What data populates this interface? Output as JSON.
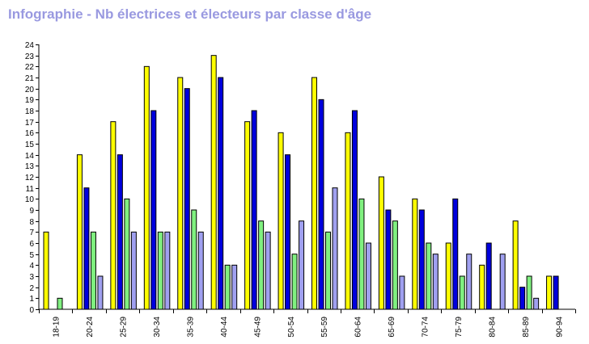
{
  "chart_data": {
    "type": "bar",
    "title": "Infographie - Nb électrices et électeurs par classe d'âge",
    "xlabel": "",
    "ylabel": "",
    "ylim": [
      0,
      24
    ],
    "yticks": [
      0,
      1,
      2,
      3,
      4,
      5,
      6,
      7,
      8,
      9,
      10,
      11,
      12,
      13,
      14,
      15,
      16,
      17,
      18,
      19,
      20,
      21,
      22,
      23,
      24
    ],
    "grid": false,
    "legend": "none",
    "categories": [
      "18-19",
      "20-24",
      "25-29",
      "30-34",
      "35-39",
      "40-44",
      "45-49",
      "50-54",
      "55-59",
      "60-64",
      "65-69",
      "70-74",
      "75-79",
      "80-84",
      "85-89",
      "90-94"
    ],
    "series": [
      {
        "color": "#ffff00",
        "values": [
          7,
          14,
          17,
          22,
          21,
          23,
          17,
          16,
          21,
          16,
          12,
          10,
          6,
          4,
          8,
          3
        ]
      },
      {
        "color": "#0000dd",
        "values": [
          0,
          11,
          14,
          18,
          20,
          21,
          18,
          14,
          19,
          18,
          9,
          9,
          10,
          6,
          2,
          3
        ]
      },
      {
        "color": "#80f080",
        "values": [
          1,
          7,
          10,
          7,
          9,
          4,
          8,
          5,
          7,
          10,
          8,
          6,
          3,
          0,
          3,
          0
        ]
      },
      {
        "color": "#a0a0f0",
        "values": [
          0,
          3,
          7,
          7,
          7,
          4,
          7,
          8,
          11,
          6,
          3,
          5,
          5,
          5,
          1,
          0
        ]
      }
    ]
  }
}
